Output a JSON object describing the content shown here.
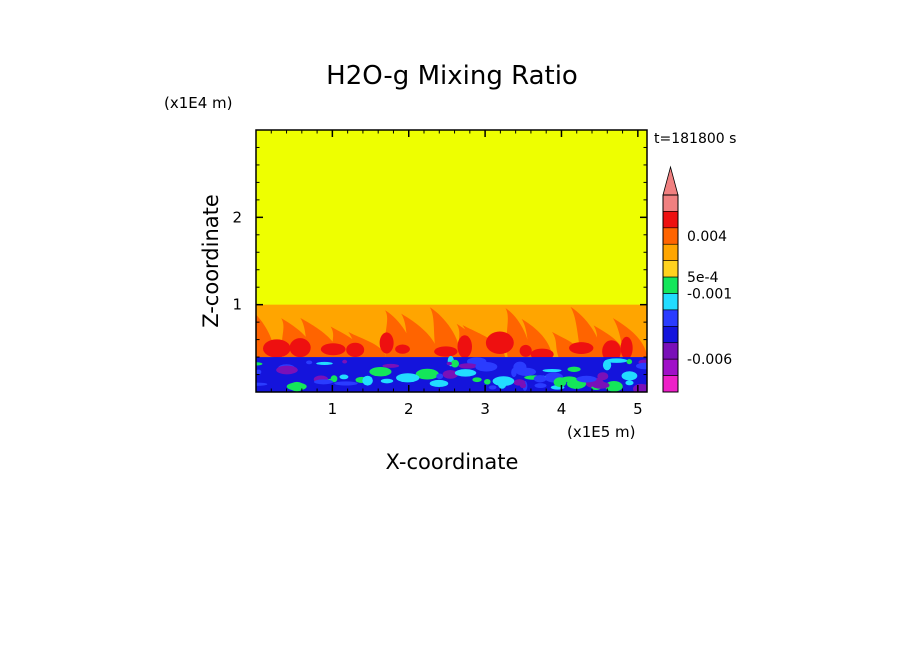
{
  "chart_data": {
    "type": "heatmap",
    "title": "H2O-g Mixing Ratio",
    "time_label": "t=181800 s",
    "xlabel": "X-coordinate",
    "ylabel": "Z-coordinate",
    "x_scale_label": "(x1E5 m)",
    "y_scale_label": "(x1E4 m)",
    "xlim": [
      0,
      5.12
    ],
    "ylim": [
      0,
      3.0
    ],
    "x_ticks": [
      1,
      2,
      3,
      4,
      5
    ],
    "y_ticks": [
      1,
      2
    ],
    "x_tick_labels": [
      "1",
      "2",
      "3",
      "4",
      "5"
    ],
    "y_tick_labels": [
      "1",
      "2"
    ],
    "regions": [
      {
        "name": "upper",
        "z_range": [
          1.0,
          3.0
        ],
        "dominant_color": "#eeff00"
      },
      {
        "name": "middle",
        "z_range": [
          0.4,
          1.0
        ],
        "dominant_colors": [
          "#ffa500",
          "#ff6400",
          "#ee1010"
        ]
      },
      {
        "name": "lower",
        "z_range": [
          0.0,
          0.4
        ],
        "dominant_colors": [
          "#1414dc",
          "#2a3cff",
          "#7a10b8",
          "#22dcff",
          "#14e65a"
        ]
      }
    ],
    "colorbar": {
      "levels": [
        "#f08080",
        "#ee1010",
        "#ff6400",
        "#ffa500",
        "#ffd21e",
        "#14e65a",
        "#22dcff",
        "#2a3cff",
        "#1414dc",
        "#7a10b8",
        "#a010c8",
        "#ee20c8"
      ],
      "labels": [
        "0.004",
        "5e-4",
        "-0.001",
        "-0.006"
      ],
      "label_level_index": [
        2.5,
        5,
        6,
        10
      ],
      "extend_top": true
    }
  }
}
